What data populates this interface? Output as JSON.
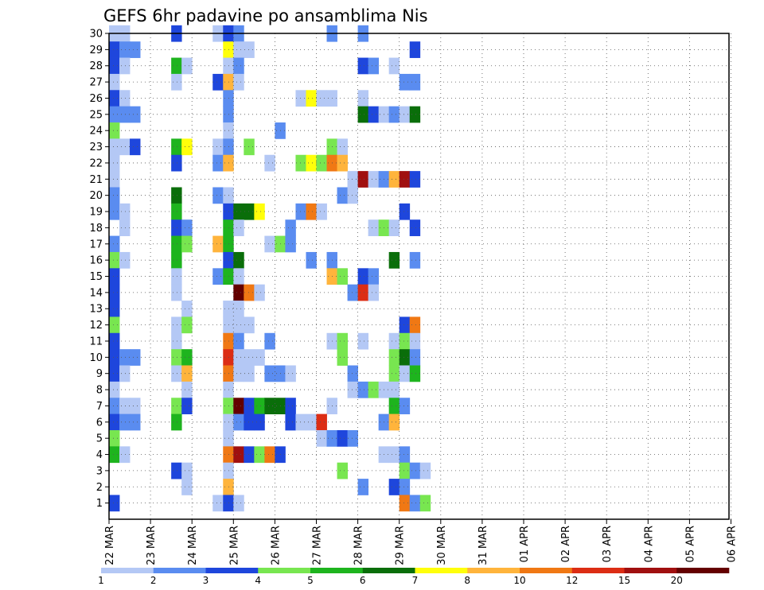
{
  "chart_data": {
    "type": "heatmap",
    "title": "GEFS 6hr padavine po ansamblima Nis",
    "xlabel": "",
    "ylabel": "",
    "x_ticks": [
      "22 MAR",
      "23 MAR",
      "24 MAR",
      "25 MAR",
      "26 MAR",
      "27 MAR",
      "28 MAR",
      "29 MAR",
      "30 MAR",
      "31 MAR",
      "01 APR",
      "02 APR",
      "03 APR",
      "04 APR",
      "05 APR",
      "06 APR"
    ],
    "x_range": [
      "22 MAR 00Z",
      "06 APR 06Z"
    ],
    "time_step_hours": 6,
    "y_ticks": [
      "1",
      "2",
      "3",
      "4",
      "5",
      "6",
      "7",
      "8",
      "9",
      "10",
      "11",
      "12",
      "13",
      "14",
      "15",
      "16",
      "17",
      "18",
      "19",
      "20",
      "21",
      "22",
      "23",
      "24",
      "25",
      "26",
      "27",
      "28",
      "29",
      "30"
    ],
    "ylim": [
      0,
      30
    ],
    "grid": true,
    "colorbar": {
      "placement": "bottom",
      "labels": [
        "1",
        "2",
        "3",
        "4",
        "5",
        "6",
        "7",
        "8",
        "10",
        "12",
        "15",
        "20"
      ],
      "colors": [
        "#b4c8f5",
        "#5a8cf0",
        "#1e46dc",
        "#78e650",
        "#1eb41e",
        "#0a6e0a",
        "#ffff0a",
        "#ffb43c",
        "#f07814",
        "#dc2d14",
        "#a00f0f",
        "#640000"
      ]
    },
    "cells": [
      [
        30,
        1,
        1
      ],
      [
        30,
        2,
        1
      ],
      [
        30,
        7,
        3
      ],
      [
        30,
        11,
        1
      ],
      [
        30,
        12,
        3
      ],
      [
        30,
        13,
        2
      ],
      [
        30,
        22,
        2
      ],
      [
        30,
        25,
        2
      ],
      [
        29,
        1,
        3
      ],
      [
        29,
        2,
        2
      ],
      [
        29,
        3,
        2
      ],
      [
        29,
        12,
        7
      ],
      [
        29,
        13,
        1
      ],
      [
        29,
        14,
        1
      ],
      [
        29,
        30,
        3
      ],
      [
        28,
        1,
        3
      ],
      [
        28,
        2,
        1
      ],
      [
        28,
        7,
        5
      ],
      [
        28,
        8,
        1
      ],
      [
        28,
        12,
        1
      ],
      [
        28,
        13,
        2
      ],
      [
        28,
        25,
        3
      ],
      [
        28,
        26,
        2
      ],
      [
        28,
        28,
        1
      ],
      [
        27,
        1,
        1
      ],
      [
        27,
        7,
        1
      ],
      [
        27,
        11,
        3
      ],
      [
        27,
        12,
        8
      ],
      [
        27,
        13,
        1
      ],
      [
        27,
        29,
        2
      ],
      [
        27,
        30,
        2
      ],
      [
        26,
        1,
        3
      ],
      [
        26,
        2,
        1
      ],
      [
        26,
        12,
        2
      ],
      [
        26,
        19,
        1
      ],
      [
        26,
        20,
        7
      ],
      [
        26,
        21,
        1
      ],
      [
        26,
        22,
        1
      ],
      [
        26,
        25,
        1
      ],
      [
        25,
        1,
        2
      ],
      [
        25,
        2,
        2
      ],
      [
        25,
        3,
        2
      ],
      [
        25,
        12,
        2
      ],
      [
        25,
        25,
        6
      ],
      [
        25,
        26,
        3
      ],
      [
        25,
        27,
        1
      ],
      [
        25,
        28,
        2
      ],
      [
        25,
        29,
        1
      ],
      [
        25,
        30,
        6
      ],
      [
        24,
        1,
        4
      ],
      [
        24,
        12,
        1
      ],
      [
        24,
        17,
        2
      ],
      [
        23,
        1,
        1
      ],
      [
        23,
        2,
        1
      ],
      [
        23,
        3,
        3
      ],
      [
        23,
        7,
        5
      ],
      [
        23,
        8,
        7
      ],
      [
        23,
        11,
        1
      ],
      [
        23,
        12,
        2
      ],
      [
        23,
        14,
        4
      ],
      [
        23,
        22,
        4
      ],
      [
        23,
        23,
        1
      ],
      [
        22,
        1,
        1
      ],
      [
        22,
        7,
        3
      ],
      [
        22,
        11,
        2
      ],
      [
        22,
        12,
        8
      ],
      [
        22,
        16,
        1
      ],
      [
        22,
        19,
        4
      ],
      [
        22,
        20,
        7
      ],
      [
        22,
        21,
        4
      ],
      [
        22,
        22,
        9
      ],
      [
        22,
        23,
        8
      ],
      [
        21,
        1,
        1
      ],
      [
        21,
        24,
        1
      ],
      [
        21,
        25,
        11
      ],
      [
        21,
        26,
        1
      ],
      [
        21,
        27,
        2
      ],
      [
        21,
        28,
        8
      ],
      [
        21,
        29,
        11
      ],
      [
        21,
        30,
        3
      ],
      [
        20,
        1,
        2
      ],
      [
        20,
        7,
        6
      ],
      [
        20,
        11,
        2
      ],
      [
        20,
        12,
        1
      ],
      [
        20,
        23,
        2
      ],
      [
        20,
        24,
        1
      ],
      [
        19,
        1,
        2
      ],
      [
        19,
        2,
        1
      ],
      [
        19,
        7,
        5
      ],
      [
        19,
        12,
        3
      ],
      [
        19,
        13,
        6
      ],
      [
        19,
        14,
        6
      ],
      [
        19,
        15,
        7
      ],
      [
        19,
        19,
        2
      ],
      [
        19,
        20,
        9
      ],
      [
        19,
        21,
        1
      ],
      [
        19,
        29,
        3
      ],
      [
        18,
        2,
        1
      ],
      [
        18,
        7,
        3
      ],
      [
        18,
        8,
        2
      ],
      [
        18,
        12,
        5
      ],
      [
        18,
        13,
        1
      ],
      [
        18,
        18,
        2
      ],
      [
        18,
        26,
        1
      ],
      [
        18,
        27,
        4
      ],
      [
        18,
        28,
        1
      ],
      [
        18,
        30,
        3
      ],
      [
        17,
        1,
        2
      ],
      [
        17,
        7,
        5
      ],
      [
        17,
        8,
        4
      ],
      [
        17,
        11,
        8
      ],
      [
        17,
        12,
        5
      ],
      [
        17,
        16,
        1
      ],
      [
        17,
        17,
        4
      ],
      [
        17,
        18,
        2
      ],
      [
        16,
        1,
        4
      ],
      [
        16,
        2,
        1
      ],
      [
        16,
        7,
        5
      ],
      [
        16,
        12,
        3
      ],
      [
        16,
        13,
        6
      ],
      [
        16,
        20,
        2
      ],
      [
        16,
        22,
        2
      ],
      [
        16,
        28,
        6
      ],
      [
        16,
        30,
        2
      ],
      [
        15,
        1,
        3
      ],
      [
        15,
        7,
        1
      ],
      [
        15,
        11,
        2
      ],
      [
        15,
        12,
        5
      ],
      [
        15,
        13,
        1
      ],
      [
        15,
        22,
        8
      ],
      [
        15,
        23,
        4
      ],
      [
        15,
        25,
        3
      ],
      [
        15,
        26,
        2
      ],
      [
        14,
        1,
        3
      ],
      [
        14,
        7,
        1
      ],
      [
        14,
        13,
        12
      ],
      [
        14,
        14,
        9
      ],
      [
        14,
        15,
        1
      ],
      [
        14,
        24,
        2
      ],
      [
        14,
        25,
        10
      ],
      [
        14,
        26,
        1
      ],
      [
        13,
        1,
        3
      ],
      [
        13,
        8,
        1
      ],
      [
        13,
        12,
        1
      ],
      [
        13,
        13,
        1
      ],
      [
        12,
        1,
        4
      ],
      [
        12,
        7,
        1
      ],
      [
        12,
        8,
        4
      ],
      [
        12,
        12,
        1
      ],
      [
        12,
        13,
        1
      ],
      [
        12,
        14,
        1
      ],
      [
        12,
        29,
        3
      ],
      [
        12,
        30,
        9
      ],
      [
        11,
        1,
        3
      ],
      [
        11,
        7,
        1
      ],
      [
        11,
        12,
        9
      ],
      [
        11,
        13,
        2
      ],
      [
        11,
        16,
        2
      ],
      [
        11,
        22,
        1
      ],
      [
        11,
        23,
        4
      ],
      [
        11,
        25,
        1
      ],
      [
        11,
        28,
        1
      ],
      [
        11,
        29,
        4
      ],
      [
        11,
        30,
        1
      ],
      [
        10,
        1,
        3
      ],
      [
        10,
        2,
        2
      ],
      [
        10,
        3,
        2
      ],
      [
        10,
        7,
        4
      ],
      [
        10,
        8,
        5
      ],
      [
        10,
        12,
        10
      ],
      [
        10,
        13,
        1
      ],
      [
        10,
        14,
        1
      ],
      [
        10,
        15,
        1
      ],
      [
        10,
        23,
        4
      ],
      [
        10,
        28,
        4
      ],
      [
        10,
        29,
        6
      ],
      [
        10,
        30,
        2
      ],
      [
        9,
        1,
        3
      ],
      [
        9,
        2,
        1
      ],
      [
        9,
        7,
        1
      ],
      [
        9,
        8,
        8
      ],
      [
        9,
        12,
        9
      ],
      [
        9,
        13,
        1
      ],
      [
        9,
        14,
        1
      ],
      [
        9,
        16,
        2
      ],
      [
        9,
        17,
        2
      ],
      [
        9,
        18,
        1
      ],
      [
        9,
        24,
        2
      ],
      [
        9,
        28,
        4
      ],
      [
        9,
        29,
        1
      ],
      [
        9,
        30,
        5
      ],
      [
        8,
        1,
        1
      ],
      [
        8,
        8,
        1
      ],
      [
        8,
        12,
        1
      ],
      [
        8,
        24,
        1
      ],
      [
        8,
        25,
        2
      ],
      [
        8,
        26,
        4
      ],
      [
        8,
        27,
        1
      ],
      [
        8,
        28,
        1
      ],
      [
        7,
        1,
        2
      ],
      [
        7,
        2,
        1
      ],
      [
        7,
        3,
        1
      ],
      [
        7,
        7,
        4
      ],
      [
        7,
        8,
        3
      ],
      [
        7,
        12,
        4
      ],
      [
        7,
        13,
        12
      ],
      [
        7,
        14,
        3
      ],
      [
        7,
        15,
        5
      ],
      [
        7,
        16,
        6
      ],
      [
        7,
        17,
        6
      ],
      [
        7,
        18,
        3
      ],
      [
        7,
        22,
        1
      ],
      [
        7,
        28,
        5
      ],
      [
        7,
        29,
        2
      ],
      [
        6,
        1,
        3
      ],
      [
        6,
        2,
        2
      ],
      [
        6,
        3,
        2
      ],
      [
        6,
        7,
        5
      ],
      [
        6,
        12,
        1
      ],
      [
        6,
        13,
        2
      ],
      [
        6,
        14,
        3
      ],
      [
        6,
        15,
        3
      ],
      [
        6,
        18,
        3
      ],
      [
        6,
        19,
        1
      ],
      [
        6,
        20,
        1
      ],
      [
        6,
        21,
        10
      ],
      [
        6,
        27,
        2
      ],
      [
        6,
        28,
        8
      ],
      [
        5,
        1,
        4
      ],
      [
        5,
        12,
        1
      ],
      [
        5,
        21,
        1
      ],
      [
        5,
        22,
        2
      ],
      [
        5,
        23,
        3
      ],
      [
        5,
        24,
        2
      ],
      [
        4,
        1,
        5
      ],
      [
        4,
        2,
        1
      ],
      [
        4,
        12,
        9
      ],
      [
        4,
        13,
        11
      ],
      [
        4,
        14,
        3
      ],
      [
        4,
        15,
        4
      ],
      [
        4,
        16,
        9
      ],
      [
        4,
        17,
        3
      ],
      [
        4,
        27,
        1
      ],
      [
        4,
        28,
        1
      ],
      [
        4,
        29,
        2
      ],
      [
        3,
        7,
        3
      ],
      [
        3,
        8,
        1
      ],
      [
        3,
        12,
        1
      ],
      [
        3,
        23,
        4
      ],
      [
        3,
        29,
        4
      ],
      [
        3,
        30,
        2
      ],
      [
        3,
        31,
        1
      ],
      [
        2,
        8,
        1
      ],
      [
        2,
        12,
        8
      ],
      [
        2,
        25,
        2
      ],
      [
        2,
        28,
        3
      ],
      [
        2,
        29,
        2
      ],
      [
        1,
        1,
        3
      ],
      [
        1,
        11,
        1
      ],
      [
        1,
        12,
        3
      ],
      [
        1,
        13,
        1
      ],
      [
        1,
        29,
        9
      ],
      [
        1,
        30,
        2
      ],
      [
        1,
        31,
        4
      ]
    ]
  }
}
